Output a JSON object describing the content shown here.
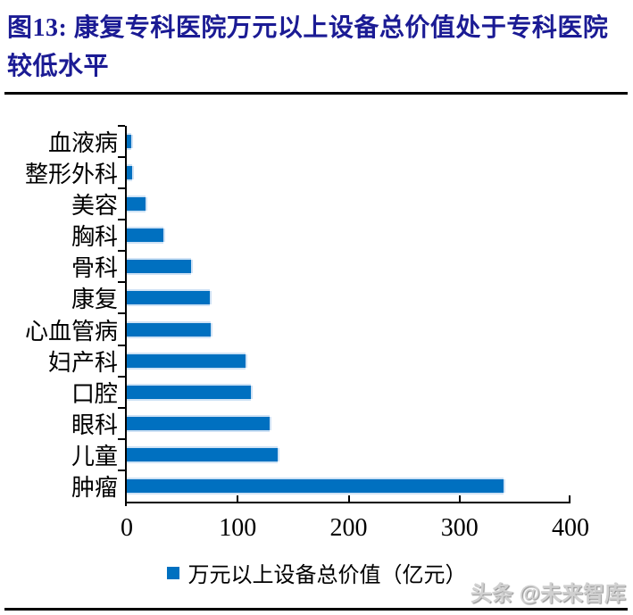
{
  "header": {
    "title_line1": "图13:  康复专科医院万元以上设备总价值处于专科医院",
    "title_line2": "较低水平",
    "title_color": "#1b1b94"
  },
  "chart_data": {
    "type": "bar",
    "orientation": "horizontal",
    "title": "图13: 康复专科医院万元以上设备总价值处于专科医院较低水平",
    "categories": [
      "血液病",
      "整形外科",
      "美容",
      "胸科",
      "骨科",
      "康复",
      "心血管病",
      "妇产科",
      "口腔",
      "眼科",
      "儿童",
      "肿瘤"
    ],
    "values": [
      4,
      5,
      17,
      33,
      58,
      75,
      76,
      107,
      112,
      129,
      136,
      340
    ],
    "series_name": "万元以上设备总价值（亿元）",
    "xlabel": "",
    "ylabel": "",
    "xlim": [
      0,
      400
    ],
    "x_ticks": [
      0,
      100,
      200,
      300,
      400
    ],
    "bar_color": "#0070C0",
    "bar_edge_color": "#cfe2f5",
    "axis_color": "#000000",
    "grid": false,
    "legend_position": "bottom"
  },
  "watermark": {
    "text": "头条 @未来智库"
  }
}
